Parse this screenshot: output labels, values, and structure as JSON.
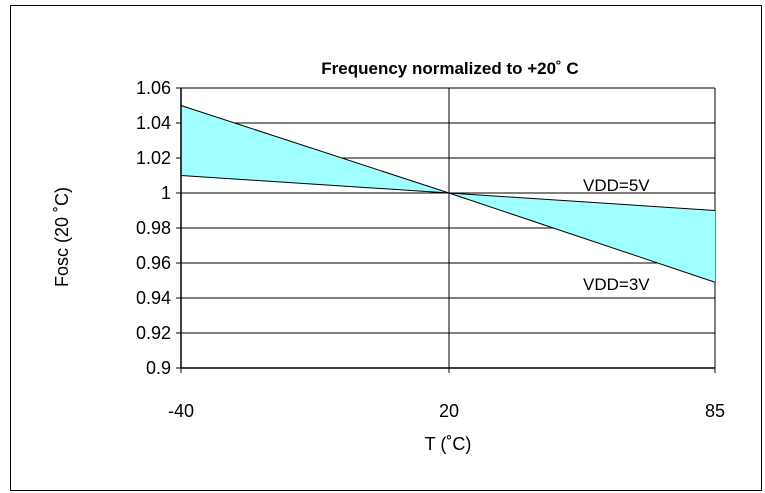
{
  "chart_data": {
    "type": "area",
    "title": "Frequency normalized to +20˚ C",
    "xlabel": "T (˚C)",
    "ylabel": "Fosc (20 ˚C)",
    "x_ticks": [
      "-40",
      "20",
      "85"
    ],
    "y_ticks": [
      "1.06",
      "1.04",
      "1.02",
      "1",
      "0.98",
      "0.96",
      "0.94",
      "0.92",
      "0.9"
    ],
    "ylim": [
      0.9,
      1.06
    ],
    "x": [
      -40,
      20,
      85
    ],
    "series": [
      {
        "name": "VDD=5V",
        "values": [
          1.01,
          1.0,
          0.99
        ]
      },
      {
        "name": "VDD=3V",
        "values": [
          1.05,
          1.0,
          0.949
        ]
      }
    ],
    "fill_color": "#a0ffff",
    "grid": true
  }
}
